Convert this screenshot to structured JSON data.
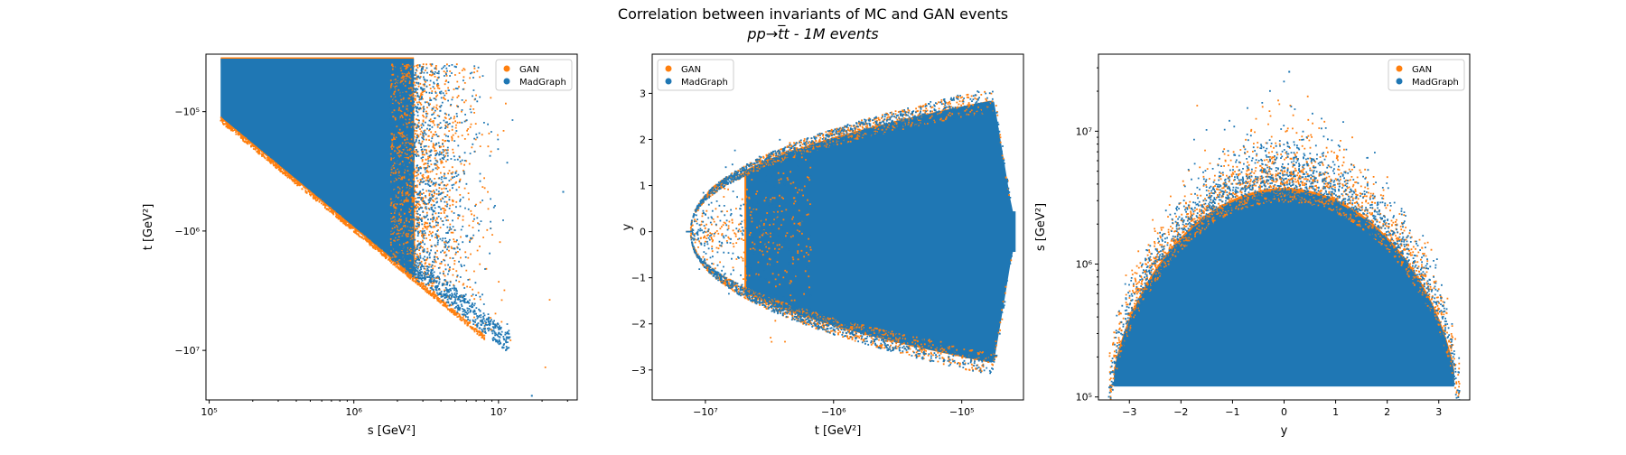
{
  "figure": {
    "title": "Correlation between invariants of MC and GAN events",
    "subtitle": "pp→t̅t - 1M events"
  },
  "colors": {
    "gan": "#ff7f0e",
    "madgraph": "#1f77b4"
  },
  "chart_data": [
    {
      "type": "scatter",
      "xlabel": "s [GeV²]",
      "ylabel": "t [GeV²]",
      "xscale": "log",
      "yscale": "symlog-negative",
      "xlim": [
        95000,
        35000000
      ],
      "ylim": [
        -26000000,
        -33000
      ],
      "xticks": [
        {
          "value": 100000,
          "label": "10⁵"
        },
        {
          "value": 1000000,
          "label": "10⁶"
        },
        {
          "value": 10000000,
          "label": "10⁷"
        }
      ],
      "yticks": [
        {
          "value": -100000,
          "label": "−10⁵"
        },
        {
          "value": -1000000,
          "label": "−10⁶"
        },
        {
          "value": -10000000,
          "label": "−10⁷"
        }
      ],
      "legend_position": "upper right",
      "series": [
        {
          "name": "GAN",
          "color": "#ff7f0e",
          "region": "s from 1.2e5 to ~1e7; t from ~-4e4 down to ~-s (lower boundary t = -s)"
        },
        {
          "name": "MadGraph",
          "color": "#1f77b4",
          "region": "s from 1.2e5 to ~2.8e7; t from ~-4e4 down to ~-s"
        }
      ],
      "outliers": [
        {
          "s": 28000000,
          "t": -470000
        },
        {
          "s": 17000000,
          "t": -24000000
        }
      ]
    },
    {
      "type": "scatter",
      "xlabel": "t [GeV²]",
      "ylabel": "y",
      "xscale": "symlog-negative",
      "yscale": "linear",
      "xlim": [
        -26000000,
        -33000
      ],
      "ylim": [
        -3.65,
        3.85
      ],
      "xticks": [
        {
          "value": -10000000,
          "label": "−10⁷"
        },
        {
          "value": -1000000,
          "label": "−10⁶"
        },
        {
          "value": -100000,
          "label": "−10⁵"
        }
      ],
      "yticks": [
        {
          "value": -3,
          "label": "−3"
        },
        {
          "value": -2,
          "label": "−2"
        },
        {
          "value": -1,
          "label": "−1"
        },
        {
          "value": 0,
          "label": "0"
        },
        {
          "value": 1,
          "label": "1"
        },
        {
          "value": 2,
          "label": "2"
        },
        {
          "value": 3,
          "label": "3"
        }
      ],
      "legend_position": "upper left",
      "series": [
        {
          "name": "GAN",
          "color": "#ff7f0e",
          "region": "t from ~-1.2e7 to -4e4; |y| up to ~3.3"
        },
        {
          "name": "MadGraph",
          "color": "#1f77b4",
          "region": "t from ~-1.5e7 to -4e4; |y| up to ~3.5"
        }
      ]
    },
    {
      "type": "scatter",
      "xlabel": "y",
      "ylabel": "s [GeV²]",
      "xscale": "linear",
      "yscale": "log",
      "xlim": [
        -3.6,
        3.6
      ],
      "ylim": [
        95000,
        38000000
      ],
      "xticks": [
        {
          "value": -3,
          "label": "−3"
        },
        {
          "value": -2,
          "label": "−2"
        },
        {
          "value": -1,
          "label": "−1"
        },
        {
          "value": 0,
          "label": "0"
        },
        {
          "value": 1,
          "label": "1"
        },
        {
          "value": 2,
          "label": "2"
        },
        {
          "value": 3,
          "label": "3"
        }
      ],
      "yticks": [
        {
          "value": 100000,
          "label": "10⁵"
        },
        {
          "value": 1000000,
          "label": "10⁶"
        },
        {
          "value": 10000000,
          "label": "10⁷"
        }
      ],
      "legend_position": "upper right",
      "series": [
        {
          "name": "GAN",
          "color": "#ff7f0e",
          "region": "y from -3.2 to 3.2; s from 1.2e5 to ~1.2e7"
        },
        {
          "name": "MadGraph",
          "color": "#1f77b4",
          "region": "y from -3.4 to 3.4; s from 1.2e5 to ~2.8e7"
        }
      ],
      "outliers": [
        {
          "y": 0.1,
          "s": 28000000
        }
      ]
    }
  ]
}
